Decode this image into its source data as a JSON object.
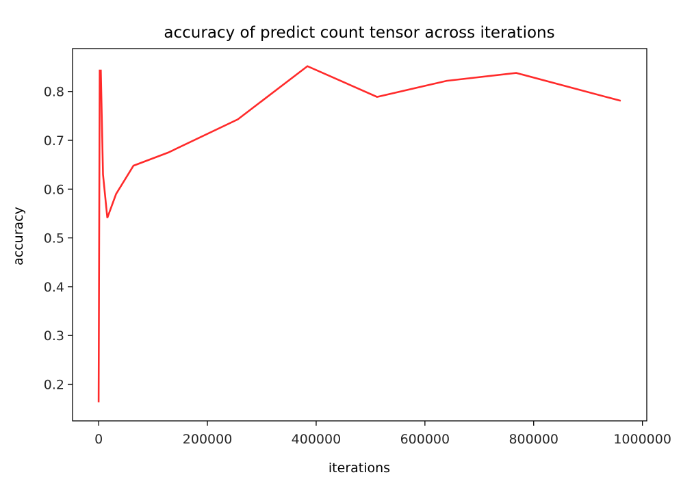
{
  "chart_data": {
    "type": "line",
    "title": "accuracy of predict count tensor across iterations",
    "xlabel": "iterations",
    "ylabel": "accuracy",
    "xlim": [
      -48000,
      1008000
    ],
    "ylim": [
      0.125,
      0.888
    ],
    "x_ticks": [
      0,
      200000,
      400000,
      600000,
      800000,
      1000000
    ],
    "x_tick_labels": [
      "0",
      "200000",
      "400000",
      "600000",
      "800000",
      "1000000"
    ],
    "y_ticks": [
      0.2,
      0.3,
      0.4,
      0.5,
      0.6,
      0.7,
      0.8
    ],
    "y_tick_labels": [
      "0.2",
      "0.3",
      "0.4",
      "0.5",
      "0.6",
      "0.7",
      "0.8"
    ],
    "grid": false,
    "series": [
      {
        "color": "#ff2a2a",
        "x": [
          0,
          2000,
          4000,
          8000,
          16000,
          32000,
          64000,
          128000,
          256000,
          384000,
          512000,
          640000,
          768000,
          960000
        ],
        "y": [
          0.163,
          0.843,
          0.843,
          0.63,
          0.541,
          0.59,
          0.648,
          0.675,
          0.743,
          0.852,
          0.789,
          0.822,
          0.838,
          0.781
        ]
      }
    ]
  }
}
